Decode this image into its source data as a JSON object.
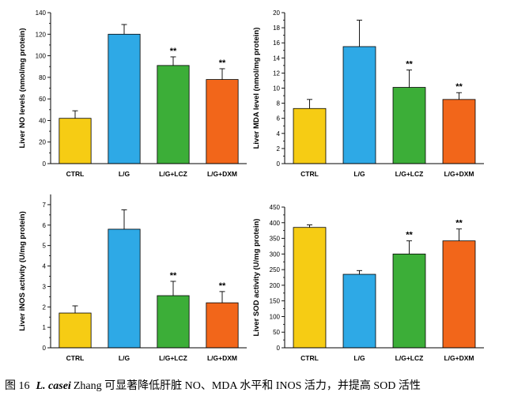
{
  "caption": {
    "figure_label": "图 16",
    "species": "L. casei",
    "text": "Zhang 可显著降低肝脏 NO、MDA 水平和 INOS 活力，并提高 SOD 活性"
  },
  "colors": {
    "CTRL": "#f6cc14",
    "L/G": "#2ea9e6",
    "L/G+LCZ": "#3cae38",
    "L/G+DXM": "#f2661a"
  },
  "chart_data": [
    {
      "type": "bar",
      "ylabel": "Liver NO levels (nmol/mg protein)",
      "categories": [
        "CTRL",
        "L/G",
        "L/G+LCZ",
        "L/G+DXM"
      ],
      "values": [
        42,
        120,
        91,
        78
      ],
      "error": [
        7,
        9,
        8,
        10
      ],
      "significance": [
        "",
        "",
        "**",
        "**"
      ],
      "ylim": [
        0,
        140
      ],
      "yticks": [
        0,
        20,
        40,
        60,
        80,
        100,
        120,
        140
      ]
    },
    {
      "type": "bar",
      "ylabel": "Liver MDA level (nmol/mg protein)",
      "categories": [
        "CTRL",
        "L/G",
        "L/G+LCZ",
        "L/G+DXM"
      ],
      "values": [
        7.3,
        15.5,
        10.1,
        8.5
      ],
      "error": [
        1.2,
        3.5,
        2.3,
        0.9
      ],
      "significance": [
        "",
        "",
        "**",
        "**"
      ],
      "ylim": [
        0,
        20
      ],
      "yticks": [
        0,
        2,
        4,
        6,
        8,
        10,
        12,
        14,
        16,
        18,
        20
      ]
    },
    {
      "type": "bar",
      "ylabel": "Liver iNOS activity (U/mg protein)",
      "categories": [
        "CTRL",
        "L/G",
        "L/G+LCZ",
        "L/G+DXM"
      ],
      "values": [
        1.7,
        5.8,
        2.55,
        2.2
      ],
      "error": [
        0.35,
        0.95,
        0.7,
        0.55
      ],
      "significance": [
        "",
        "",
        "**",
        "**"
      ],
      "ylim": [
        0,
        7.5
      ],
      "yticks": [
        0,
        1,
        2,
        3,
        4,
        5,
        6,
        7
      ]
    },
    {
      "type": "bar",
      "ylabel": "Liver SOD activity (U/mg protein)",
      "categories": [
        "CTRL",
        "L/G",
        "L/G+LCZ",
        "L/G+DXM"
      ],
      "values": [
        385,
        235,
        300,
        342
      ],
      "error": [
        8,
        12,
        42,
        38
      ],
      "significance": [
        "",
        "",
        "**",
        "**"
      ],
      "ylim": [
        0,
        450
      ],
      "yticks": [
        0,
        50,
        100,
        150,
        200,
        250,
        300,
        350,
        400,
        450
      ]
    }
  ]
}
